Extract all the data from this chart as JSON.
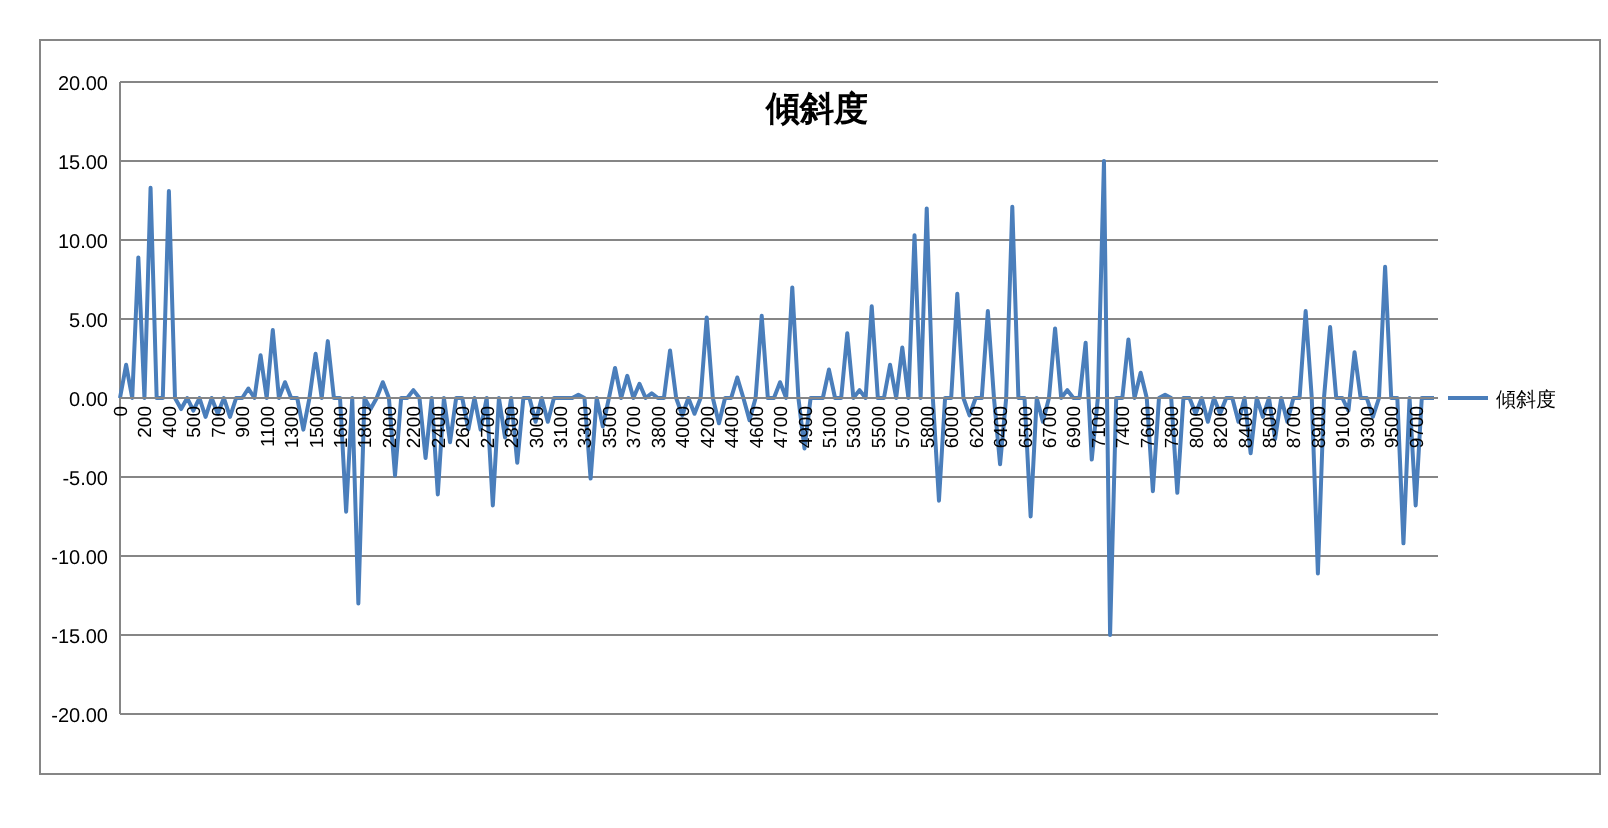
{
  "chart_data": {
    "type": "line",
    "title": "傾斜度",
    "categories": [
      "0",
      null,
      null,
      null,
      "200",
      null,
      null,
      null,
      "400",
      null,
      null,
      null,
      "500",
      null,
      null,
      null,
      "700",
      null,
      null,
      null,
      "900",
      null,
      null,
      null,
      "1100",
      null,
      null,
      null,
      "1300",
      null,
      null,
      null,
      "1500",
      null,
      null,
      null,
      "1600",
      null,
      null,
      null,
      "1800",
      null,
      null,
      null,
      "2000",
      null,
      null,
      null,
      "2200",
      null,
      null,
      null,
      "2400",
      null,
      null,
      null,
      "2600",
      null,
      null,
      null,
      "2700",
      null,
      null,
      null,
      "2800",
      null,
      null,
      null,
      "3000",
      null,
      null,
      null,
      "3100",
      null,
      null,
      null,
      "3300",
      null,
      null,
      null,
      "3500",
      null,
      null,
      null,
      "3700",
      null,
      null,
      null,
      "3800",
      null,
      null,
      null,
      "4000",
      null,
      null,
      null,
      "4200",
      null,
      null,
      null,
      "4400",
      null,
      null,
      null,
      "4600",
      null,
      null,
      null,
      "4700",
      null,
      null,
      null,
      "4900",
      null,
      null,
      null,
      "5100",
      null,
      null,
      null,
      "5300",
      null,
      null,
      null,
      "5500",
      null,
      null,
      null,
      "5700",
      null,
      null,
      null,
      "5800",
      null,
      null,
      null,
      "6000",
      null,
      null,
      null,
      "6200",
      null,
      null,
      null,
      "6400",
      null,
      null,
      null,
      "6500",
      null,
      null,
      null,
      "6700",
      null,
      null,
      null,
      "6900",
      null,
      null,
      null,
      "7100",
      null,
      null,
      null,
      "7400",
      null,
      null,
      null,
      "7600",
      null,
      null,
      null,
      "7800",
      null,
      null,
      null,
      "8000",
      null,
      null,
      null,
      "8200",
      null,
      null,
      null,
      "8400",
      null,
      null,
      null,
      "8500",
      null,
      null,
      null,
      "8700",
      null,
      null,
      null,
      "8900",
      null,
      null,
      null,
      "9100",
      null,
      null,
      null,
      "9300",
      null,
      null,
      null,
      "9500",
      null,
      null,
      null,
      "9700",
      null,
      null,
      null
    ],
    "series": [
      {
        "name": "傾斜度",
        "color": "#4a7ebb",
        "values": [
          0,
          2.1,
          0,
          8.9,
          0,
          13.3,
          0,
          0,
          13.1,
          0,
          -0.7,
          0,
          -0.8,
          0,
          -1.2,
          0,
          -1,
          0,
          -1.2,
          0,
          0,
          0.6,
          0,
          2.7,
          0,
          4.3,
          0,
          1,
          0,
          0,
          -2,
          0,
          2.8,
          0,
          3.6,
          0,
          0,
          -7.2,
          0,
          -13,
          0,
          -0.7,
          0,
          1,
          0,
          -4.9,
          0,
          0,
          0.5,
          0,
          -3.8,
          0,
          -6.1,
          0,
          -2.8,
          0,
          0,
          -2,
          0,
          -2,
          0,
          -6.8,
          0,
          -2.5,
          0,
          -4.1,
          0,
          0,
          -1.5,
          0,
          -1.5,
          0,
          0,
          0,
          0,
          0.2,
          0,
          -5.1,
          0,
          -1.8,
          0,
          1.9,
          0,
          1.4,
          0,
          0.9,
          0,
          0.3,
          0,
          0,
          3,
          0,
          -1.1,
          0,
          -1,
          0,
          5.1,
          0,
          -1.6,
          0,
          0,
          1.3,
          0,
          -1.4,
          0,
          5.2,
          0,
          0,
          1,
          0,
          7,
          0,
          -3.2,
          0,
          0,
          0,
          1.8,
          0,
          0,
          4.1,
          0,
          0.5,
          0,
          5.8,
          0,
          0,
          2.1,
          0,
          3.2,
          0,
          10.3,
          0,
          12,
          0,
          -6.5,
          0,
          0,
          6.6,
          0,
          -1.1,
          0,
          0,
          5.5,
          0,
          -4.2,
          0,
          12.1,
          0,
          0,
          -7.5,
          0,
          -1.5,
          0,
          4.4,
          0,
          0.5,
          0,
          0,
          3.5,
          -3.9,
          0,
          15,
          -15,
          0,
          0,
          3.7,
          0,
          1.6,
          0,
          -5.9,
          0,
          0.2,
          0,
          -6,
          0,
          0,
          -1,
          0,
          -1.5,
          0,
          -1,
          0,
          0,
          -1.5,
          0,
          -3.5,
          0,
          -1.2,
          0,
          -2.6,
          0,
          -1.5,
          0,
          0,
          5.5,
          0,
          -11.1,
          0,
          4.5,
          0,
          0,
          -0.8,
          2.9,
          0,
          0,
          -1.2,
          0,
          8.3,
          0,
          0,
          -9.2,
          0,
          -6.8,
          0,
          0,
          0
        ]
      }
    ],
    "ylim": [
      -20,
      20
    ],
    "yticks": [
      {
        "value": -20,
        "label": "-20.00"
      },
      {
        "value": -15,
        "label": "-15.00"
      },
      {
        "value": -10,
        "label": "-10.00"
      },
      {
        "value": -5,
        "label": "-5.00"
      },
      {
        "value": 0,
        "label": "0.00"
      },
      {
        "value": 5,
        "label": "5.00"
      },
      {
        "value": 10,
        "label": "10.00"
      },
      {
        "value": 15,
        "label": "15.00"
      },
      {
        "value": 20,
        "label": "20.00"
      }
    ],
    "grid": "y",
    "legend": "right",
    "marker": "none",
    "line_style": "solid"
  }
}
